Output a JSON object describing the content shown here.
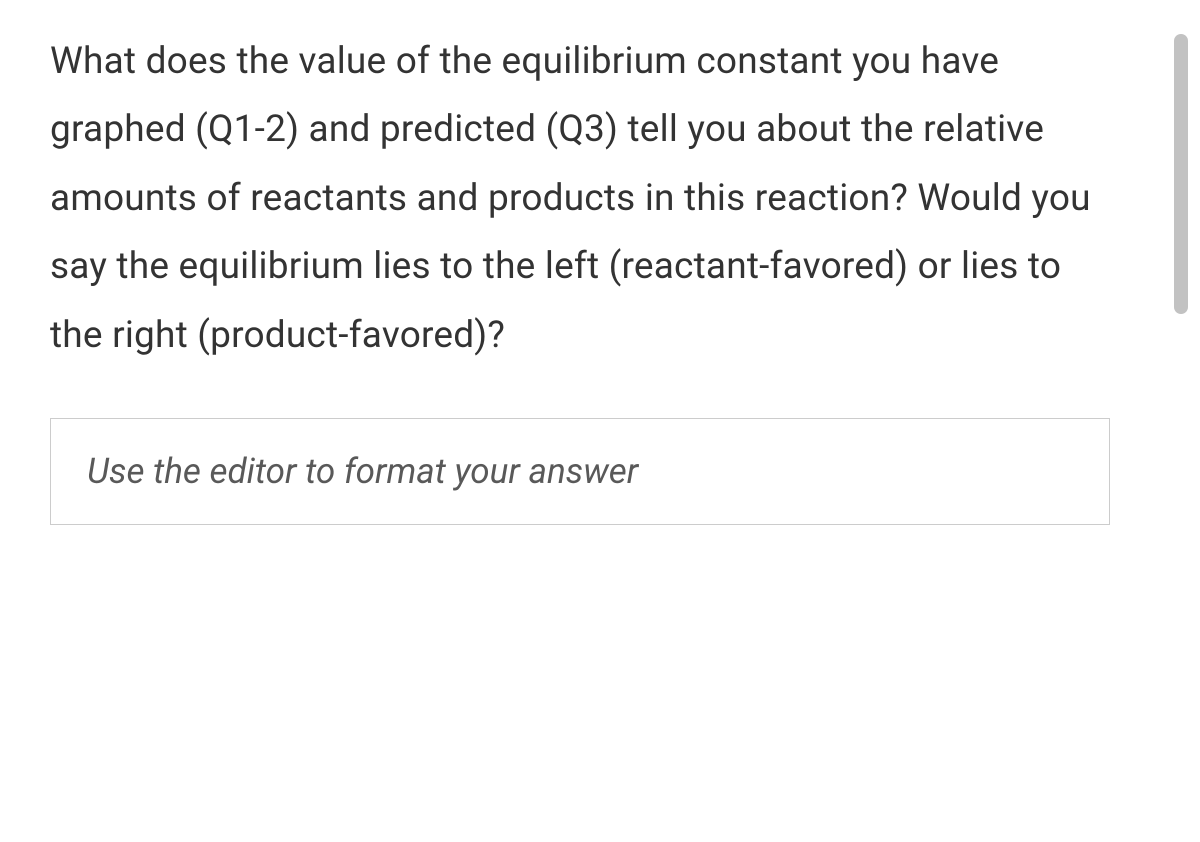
{
  "question": {
    "text": "What does the value of the equilibrium constant you have graphed (Q1-2) and predicted (Q3) tell you about the relative amounts of reactants and products in this reaction? Would you say the equilibrium lies to the left (reactant-favored) or lies to the right (product-favored)?"
  },
  "editor": {
    "placeholder": "Use the editor to format your answer"
  },
  "styling": {
    "text_color": "#333333",
    "placeholder_color": "#595959",
    "border_color": "#cccccc",
    "scrollbar_color": "#c2c2c2",
    "background_color": "#ffffff",
    "question_fontsize": 37,
    "placeholder_fontsize": 35
  }
}
